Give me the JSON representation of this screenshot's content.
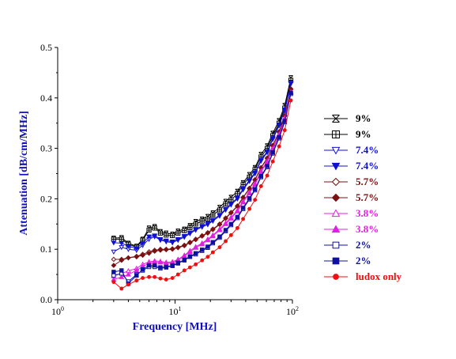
{
  "chart_data": {
    "type": "line",
    "title": "",
    "xlabel": "Frequency [MHz]",
    "ylabel": "Attenuation [dB/cm/MHz]",
    "xscale": "log",
    "xlim": [
      1,
      100
    ],
    "ylim": [
      0,
      0.5
    ],
    "xtick_labels": [
      {
        "base": "10",
        "exp": "0"
      },
      {
        "base": "10",
        "exp": "1"
      },
      {
        "base": "10",
        "exp": "2"
      }
    ],
    "ytick_labels": [
      "0.0",
      "0.1",
      "0.2",
      "0.3",
      "0.4",
      "0.5"
    ],
    "legend_position": "right",
    "x": [
      3,
      3.5,
      4,
      4.7,
      5.3,
      6,
      6.7,
      7.5,
      8.4,
      9.5,
      10.6,
      12,
      13.4,
      15,
      17,
      19,
      21,
      24,
      27,
      30,
      34,
      38,
      43,
      48,
      54,
      61,
      68,
      77,
      86,
      97
    ],
    "series": [
      {
        "name": "9%",
        "color": "#000000",
        "marker": "x",
        "values": [
          0.122,
          0.123,
          0.112,
          0.106,
          0.12,
          0.142,
          0.145,
          0.135,
          0.132,
          0.13,
          0.136,
          0.14,
          0.147,
          0.155,
          0.16,
          0.165,
          0.172,
          0.183,
          0.195,
          0.203,
          0.215,
          0.232,
          0.248,
          0.262,
          0.288,
          0.305,
          0.33,
          0.355,
          0.385,
          0.44
        ]
      },
      {
        "name": "9%",
        "color": "#000000",
        "marker": "open-square-cross",
        "values": [
          0.12,
          0.12,
          0.11,
          0.104,
          0.118,
          0.138,
          0.142,
          0.132,
          0.128,
          0.127,
          0.132,
          0.137,
          0.143,
          0.15,
          0.156,
          0.16,
          0.168,
          0.178,
          0.19,
          0.198,
          0.21,
          0.228,
          0.243,
          0.258,
          0.283,
          0.3,
          0.325,
          0.35,
          0.38,
          0.435
        ]
      },
      {
        "name": "7.4%",
        "color": "#1010d0",
        "marker": "open-triangle-down",
        "values": [
          0.095,
          0.104,
          0.1,
          0.098,
          0.108,
          0.12,
          0.125,
          0.118,
          0.115,
          0.113,
          0.118,
          0.124,
          0.131,
          0.138,
          0.144,
          0.149,
          0.156,
          0.166,
          0.178,
          0.188,
          0.2,
          0.218,
          0.235,
          0.25,
          0.275,
          0.292,
          0.318,
          0.345,
          0.375,
          0.428
        ]
      },
      {
        "name": "7.4%",
        "color": "#1010d0",
        "marker": "filled-triangle-down",
        "values": [
          0.113,
          0.112,
          0.106,
          0.102,
          0.112,
          0.125,
          0.127,
          0.12,
          0.117,
          0.115,
          0.12,
          0.126,
          0.133,
          0.14,
          0.146,
          0.151,
          0.158,
          0.168,
          0.18,
          0.19,
          0.202,
          0.22,
          0.237,
          0.252,
          0.277,
          0.294,
          0.32,
          0.347,
          0.377,
          0.43
        ]
      },
      {
        "name": "5.7%",
        "color": "#7a1010",
        "marker": "open-diamond",
        "values": [
          0.08,
          0.08,
          0.083,
          0.086,
          0.09,
          0.095,
          0.098,
          0.1,
          0.1,
          0.101,
          0.104,
          0.108,
          0.114,
          0.12,
          0.127,
          0.133,
          0.14,
          0.15,
          0.162,
          0.173,
          0.186,
          0.203,
          0.221,
          0.238,
          0.262,
          0.281,
          0.306,
          0.333,
          0.365,
          0.418
        ]
      },
      {
        "name": "5.7%",
        "color": "#7a1010",
        "marker": "filled-diamond",
        "values": [
          0.068,
          0.078,
          0.083,
          0.085,
          0.088,
          0.092,
          0.096,
          0.098,
          0.099,
          0.1,
          0.103,
          0.107,
          0.113,
          0.119,
          0.126,
          0.132,
          0.139,
          0.149,
          0.161,
          0.172,
          0.185,
          0.202,
          0.22,
          0.237,
          0.261,
          0.28,
          0.305,
          0.332,
          0.364,
          0.417
        ]
      },
      {
        "name": "3.8%",
        "color": "#e020e0",
        "marker": "open-triangle-up",
        "values": [
          0.047,
          0.052,
          0.057,
          0.062,
          0.07,
          0.075,
          0.077,
          0.076,
          0.074,
          0.075,
          0.08,
          0.088,
          0.097,
          0.105,
          0.112,
          0.12,
          0.128,
          0.14,
          0.152,
          0.163,
          0.177,
          0.195,
          0.213,
          0.23,
          0.255,
          0.275,
          0.3,
          0.328,
          0.36,
          0.412
        ]
      },
      {
        "name": "3.8%",
        "color": "#e020e0",
        "marker": "filled-triangle-up",
        "values": [
          0.04,
          0.045,
          0.05,
          0.058,
          0.066,
          0.072,
          0.074,
          0.074,
          0.072,
          0.073,
          0.078,
          0.086,
          0.095,
          0.103,
          0.11,
          0.118,
          0.126,
          0.138,
          0.15,
          0.161,
          0.175,
          0.193,
          0.211,
          0.228,
          0.253,
          0.273,
          0.298,
          0.326,
          0.358,
          0.41
        ]
      },
      {
        "name": "2%",
        "color": "#1010a0",
        "marker": "open-square",
        "values": [
          0.048,
          0.052,
          0.036,
          0.05,
          0.058,
          0.065,
          0.065,
          0.062,
          0.064,
          0.067,
          0.072,
          0.078,
          0.085,
          0.09,
          0.097,
          0.103,
          0.112,
          0.123,
          0.136,
          0.148,
          0.162,
          0.18,
          0.199,
          0.217,
          0.243,
          0.263,
          0.29,
          0.32,
          0.352,
          0.408
        ]
      },
      {
        "name": "2%",
        "color": "#1010a0",
        "marker": "filled-square",
        "values": [
          0.055,
          0.058,
          0.032,
          0.048,
          0.06,
          0.068,
          0.068,
          0.064,
          0.065,
          0.068,
          0.073,
          0.079,
          0.086,
          0.092,
          0.099,
          0.105,
          0.114,
          0.125,
          0.138,
          0.15,
          0.164,
          0.182,
          0.201,
          0.219,
          0.245,
          0.265,
          0.292,
          0.322,
          0.354,
          0.41
        ]
      },
      {
        "name": "ludox only",
        "color": "#ee1010",
        "marker": "filled-circle",
        "values": [
          0.035,
          0.022,
          0.03,
          0.038,
          0.043,
          0.045,
          0.045,
          0.042,
          0.04,
          0.043,
          0.05,
          0.058,
          0.064,
          0.07,
          0.078,
          0.085,
          0.094,
          0.104,
          0.116,
          0.128,
          0.142,
          0.16,
          0.18,
          0.198,
          0.225,
          0.246,
          0.274,
          0.304,
          0.336,
          0.395
        ]
      }
    ]
  }
}
